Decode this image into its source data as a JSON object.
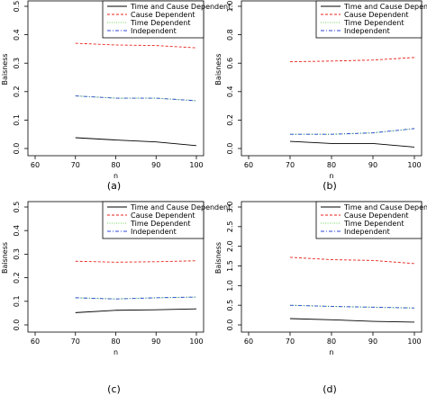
{
  "colors": {
    "time_and_cause_dependent": "#000000",
    "cause_dependent": "#e8211b",
    "time_dependent": "#9be38f",
    "independent": "#2b44d8"
  },
  "chart_data": [
    {
      "type": "line",
      "caption": "(a)",
      "xlabel": "n",
      "ylabel": "Baisness",
      "xlim": [
        60,
        100
      ],
      "ylim": [
        0,
        0.5
      ],
      "x_ticks": [
        "60",
        "70",
        "80",
        "90",
        "100"
      ],
      "y_ticks": [
        "0.0",
        "0.1",
        "0.2",
        "0.3",
        "0.4",
        "0.5"
      ],
      "x": [
        70,
        80,
        90,
        100
      ],
      "legend_position": "top-right",
      "series": [
        {
          "name": "Time and Cause Dependent",
          "style": "solid",
          "color_key": "time_and_cause_dependent",
          "values": [
            0.038,
            0.03,
            0.023,
            0.01
          ]
        },
        {
          "name": "Cause Dependent",
          "style": "dashed",
          "color_key": "cause_dependent",
          "values": [
            0.37,
            0.364,
            0.362,
            0.354
          ]
        },
        {
          "name": "Time Dependent",
          "style": "dotted",
          "color_key": "time_dependent",
          "values": [
            0.185,
            0.177,
            0.177,
            0.168
          ]
        },
        {
          "name": "Independent",
          "style": "dashdot",
          "color_key": "independent",
          "values": [
            0.185,
            0.177,
            0.177,
            0.168
          ]
        }
      ]
    },
    {
      "type": "line",
      "caption": "(b)",
      "xlabel": "n",
      "ylabel": "Baisness",
      "xlim": [
        60,
        100
      ],
      "ylim": [
        0,
        1.0
      ],
      "x_ticks": [
        "60",
        "70",
        "80",
        "90",
        "100"
      ],
      "y_ticks": [
        "0.0",
        "0.2",
        "0.4",
        "0.6",
        "0.8",
        "1.0"
      ],
      "x": [
        70,
        80,
        90,
        100
      ],
      "legend_position": "top-right",
      "series": [
        {
          "name": "Time and Cause Dependent",
          "style": "solid",
          "color_key": "time_and_cause_dependent",
          "values": [
            0.05,
            0.035,
            0.035,
            0.01
          ]
        },
        {
          "name": "Cause Dependent",
          "style": "dashed",
          "color_key": "cause_dependent",
          "values": [
            0.61,
            0.615,
            0.622,
            0.64
          ]
        },
        {
          "name": "Time Dependent",
          "style": "dotted",
          "color_key": "time_dependent",
          "values": [
            0.1,
            0.1,
            0.11,
            0.14
          ]
        },
        {
          "name": "Independent",
          "style": "dashdot",
          "color_key": "independent",
          "values": [
            0.1,
            0.1,
            0.11,
            0.14
          ]
        }
      ]
    },
    {
      "type": "line",
      "caption": "(c)",
      "xlabel": "n",
      "ylabel": "Baisness",
      "xlim": [
        60,
        100
      ],
      "ylim": [
        0,
        0.5
      ],
      "x_ticks": [
        "60",
        "70",
        "80",
        "90",
        "100"
      ],
      "y_ticks": [
        "0.0",
        "0.1",
        "0.2",
        "0.3",
        "0.4",
        "0.5"
      ],
      "x": [
        70,
        80,
        90,
        100
      ],
      "legend_position": "top-right",
      "series": [
        {
          "name": "Time and Cause Dependent",
          "style": "solid",
          "color_key": "time_and_cause_dependent",
          "values": [
            0.052,
            0.062,
            0.064,
            0.068
          ]
        },
        {
          "name": "Cause Dependent",
          "style": "dashed",
          "color_key": "cause_dependent",
          "values": [
            0.27,
            0.266,
            0.268,
            0.272
          ]
        },
        {
          "name": "Time Dependent",
          "style": "dotted",
          "color_key": "time_dependent",
          "values": [
            0.115,
            0.11,
            0.115,
            0.118
          ]
        },
        {
          "name": "Independent",
          "style": "dashdot",
          "color_key": "independent",
          "values": [
            0.115,
            0.11,
            0.115,
            0.118
          ]
        }
      ]
    },
    {
      "type": "line",
      "caption": "(d)",
      "xlabel": "n",
      "ylabel": "Baisness",
      "xlim": [
        60,
        100
      ],
      "ylim": [
        0,
        3.0
      ],
      "x_ticks": [
        "60",
        "70",
        "80",
        "90",
        "100"
      ],
      "y_ticks": [
        "0.0",
        "0.5",
        "1.0",
        "1.5",
        "2.0",
        "2.5",
        "3.0"
      ],
      "x": [
        70,
        80,
        90,
        100
      ],
      "legend_position": "top-right",
      "series": [
        {
          "name": "Time and Cause Dependent",
          "style": "solid",
          "color_key": "time_and_cause_dependent",
          "values": [
            0.16,
            0.13,
            0.09,
            0.07
          ]
        },
        {
          "name": "Cause Dependent",
          "style": "dashed",
          "color_key": "cause_dependent",
          "values": [
            1.72,
            1.66,
            1.64,
            1.56
          ]
        },
        {
          "name": "Time Dependent",
          "style": "dotted",
          "color_key": "time_dependent",
          "values": [
            0.5,
            0.47,
            0.45,
            0.43
          ]
        },
        {
          "name": "Independent",
          "style": "dashdot",
          "color_key": "independent",
          "values": [
            0.5,
            0.47,
            0.45,
            0.43
          ]
        }
      ]
    }
  ]
}
